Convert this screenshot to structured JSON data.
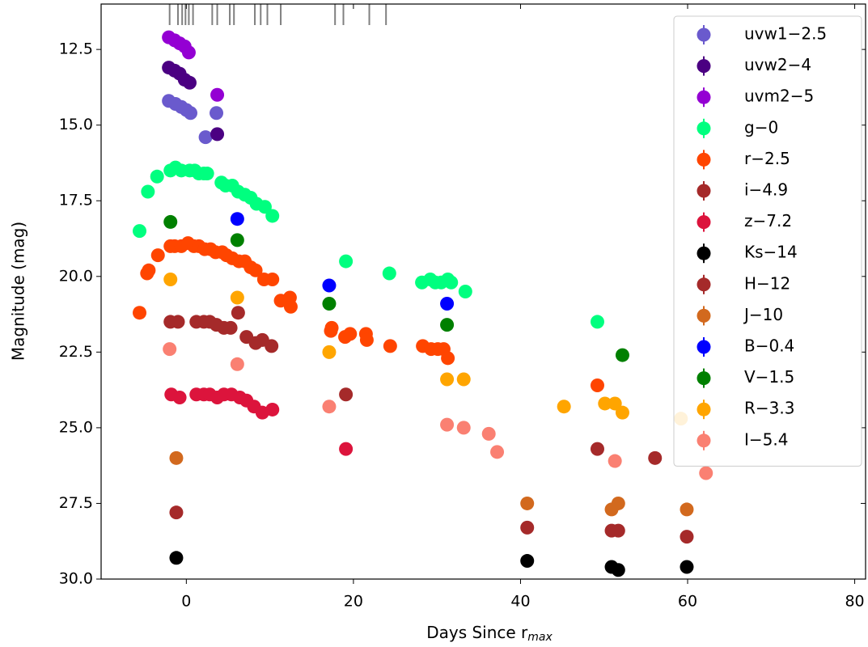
{
  "chart_data": {
    "type": "scatter",
    "xlabel": {
      "text": "Days Since r",
      "subscript": "max"
    },
    "ylabel": "Magnitude (mag)",
    "xlim": [
      -10.2,
      81.3
    ],
    "ylim": [
      30,
      11.0
    ],
    "xticks": [
      0,
      20,
      40,
      60,
      80
    ],
    "yticks": [
      12.5,
      {
        "value": 15,
        "label": "15.0"
      },
      17.5,
      {
        "value": 20,
        "label": "20.0"
      },
      22.5,
      {
        "value": 25,
        "label": "25.0"
      },
      27.5,
      {
        "value": 30,
        "label": "30.0"
      }
    ],
    "spectra_epochs": [
      -2.0,
      -1.0,
      -0.5,
      -0.1,
      0.3,
      0.8,
      3.1,
      3.7,
      5.2,
      5.7,
      8.2,
      8.9,
      9.7,
      11.3,
      17.8,
      18.8,
      21.9,
      23.9
    ],
    "legend": "upper right",
    "series": [
      {
        "name": "uvw1−2.5",
        "color": "#6a5acd",
        "x": [
          -2.1,
          -1.3,
          -0.6,
          0,
          0.5,
          2.3,
          3.6
        ],
        "values": [
          14.2,
          14.3,
          14.4,
          14.5,
          14.6,
          15.4,
          14.6
        ]
      },
      {
        "name": "uvw2−4",
        "color": "#4b0082",
        "x": [
          -2.1,
          -1.4,
          -0.8,
          -0.2,
          0.4,
          3.7
        ],
        "values": [
          13.1,
          13.2,
          13.3,
          13.5,
          13.6,
          15.3
        ]
      },
      {
        "name": "uvm2−5",
        "color": "#9400d3",
        "x": [
          -2.1,
          -1.4,
          -0.8,
          -0.2,
          0.3,
          3.7
        ],
        "values": [
          12.1,
          12.2,
          12.3,
          12.4,
          12.6,
          14.0
        ]
      },
      {
        "name": "g−0",
        "color": "#00ff7f",
        "x": [
          -5.6,
          -4.6,
          -3.5,
          -1.9,
          -1.3,
          -0.6,
          0.4,
          1.0,
          1.5,
          2.1,
          2.5,
          4.2,
          4.7,
          5.5,
          6.2,
          7.0,
          7.7,
          8.4,
          9.4,
          10.3,
          19.1,
          24.3,
          28.2,
          29.2,
          29.8,
          30.5,
          31.3,
          31.7,
          33.4,
          49.2
        ],
        "values": [
          18.5,
          17.2,
          16.7,
          16.5,
          16.4,
          16.5,
          16.5,
          16.5,
          16.6,
          16.6,
          16.6,
          16.9,
          17.0,
          17.0,
          17.2,
          17.3,
          17.4,
          17.6,
          17.7,
          18.0,
          19.5,
          19.9,
          20.2,
          20.1,
          20.2,
          20.2,
          20.1,
          20.2,
          20.5,
          21.5
        ]
      },
      {
        "name": "r−2.5",
        "color": "#ff4500",
        "x": [
          -5.6,
          -4.7,
          -4.5,
          -3.4,
          -1.9,
          -1.4,
          -0.6,
          0.2,
          0.9,
          1.5,
          2.2,
          2.9,
          3.5,
          4.3,
          4.8,
          5.5,
          6.3,
          7.0,
          7.7,
          8.3,
          9.3,
          10.3,
          11.3,
          12.4,
          12.5,
          17.3,
          17.4,
          19.0,
          19.6,
          21.5,
          21.6,
          24.4,
          28.3,
          29.3,
          30.1,
          30.8,
          31.3,
          49.2
        ],
        "values": [
          21.2,
          19.9,
          19.8,
          19.3,
          19.0,
          19.0,
          19.0,
          18.9,
          19.0,
          19.0,
          19.1,
          19.1,
          19.2,
          19.2,
          19.3,
          19.4,
          19.5,
          19.5,
          19.7,
          19.8,
          20.1,
          20.1,
          20.8,
          20.7,
          21.0,
          21.8,
          21.7,
          22.0,
          21.9,
          21.9,
          22.1,
          22.3,
          22.3,
          22.4,
          22.4,
          22.4,
          22.7,
          23.6
        ]
      },
      {
        "name": "i−4.9",
        "color": "#a52a2a",
        "x": [
          -1.9,
          -1.0,
          1.2,
          2.1,
          2.8,
          3.6,
          4.5,
          5.3,
          6.2,
          7.2,
          8.3,
          9.1,
          10.2,
          19.1
        ],
        "values": [
          21.5,
          21.5,
          21.5,
          21.5,
          21.5,
          21.6,
          21.7,
          21.7,
          21.2,
          22.0,
          22.2,
          22.1,
          22.3,
          23.9
        ]
      },
      {
        "name": "z−7.2",
        "color": "#dc143c",
        "x": [
          -1.8,
          -0.8,
          1.2,
          2.1,
          2.8,
          3.7,
          4.5,
          5.4,
          6.4,
          7.2,
          8.1,
          9.1,
          10.3,
          19.1
        ],
        "values": [
          23.9,
          24.0,
          23.9,
          23.9,
          23.9,
          24.0,
          23.9,
          23.9,
          24.0,
          24.1,
          24.3,
          24.5,
          24.4,
          25.7
        ]
      },
      {
        "name": "Ks−14",
        "color": "#000000",
        "x": [
          -1.2,
          40.8,
          50.9,
          51.7,
          59.9
        ],
        "values": [
          29.3,
          29.4,
          29.6,
          29.7,
          29.6
        ]
      },
      {
        "name": "H−12",
        "color": "#a52a2a",
        "x": [
          -1.2,
          40.8,
          49.2,
          50.9,
          51.7,
          56.1,
          59.9
        ],
        "values": [
          27.8,
          28.3,
          25.7,
          28.4,
          28.4,
          26.0,
          28.6
        ]
      },
      {
        "name": "J−10",
        "color": "#d2691e",
        "x": [
          -1.2,
          40.8,
          50.9,
          51.7,
          59.9
        ],
        "values": [
          26.0,
          27.5,
          27.7,
          27.5,
          27.7
        ]
      },
      {
        "name": "B−0.4",
        "color": "#0000ff",
        "x": [
          6.1,
          17.1,
          31.2
        ],
        "values": [
          18.1,
          20.3,
          20.9
        ]
      },
      {
        "name": "V−1.5",
        "color": "#008000",
        "x": [
          -1.9,
          6.1,
          17.1,
          31.2,
          52.2
        ],
        "values": [
          18.2,
          18.8,
          20.9,
          21.6,
          22.6
        ]
      },
      {
        "name": "R−3.3",
        "color": "#ffa500",
        "x": [
          -1.9,
          6.1,
          17.1,
          31.2,
          33.2,
          45.2,
          50.1,
          51.3,
          52.2,
          59.2
        ],
        "values": [
          20.1,
          20.7,
          22.5,
          23.4,
          23.4,
          24.3,
          24.2,
          24.2,
          24.5,
          24.7
        ]
      },
      {
        "name": "I−5.4",
        "color": "#fa8072",
        "x": [
          -2.0,
          6.1,
          17.1,
          31.2,
          33.2,
          36.2,
          37.2,
          51.3,
          62.2
        ],
        "values": [
          22.4,
          22.9,
          24.3,
          24.9,
          25.0,
          25.2,
          25.8,
          26.1,
          26.5
        ]
      }
    ]
  }
}
